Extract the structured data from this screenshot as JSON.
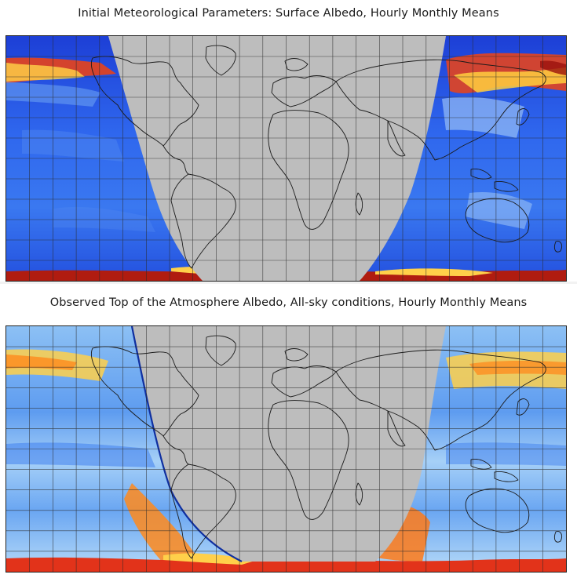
{
  "figure": {
    "panels": [
      {
        "id": "surface-albedo",
        "title": "Initial Meteorological Parameters: Surface Albedo, Hourly Monthly Means",
        "field": "surface-albedo",
        "projection": "equirectangular-global",
        "grid": true,
        "night_side_fill": "#bdbdbd",
        "colorscale": [
          "#1530c8",
          "#2b5cf0",
          "#5a93f2",
          "#9ec4f4",
          "#ffe04a",
          "#ff8a1c",
          "#e82a14",
          "#7a0f0a"
        ]
      },
      {
        "id": "toa-albedo",
        "title": "Observed Top of the Atmosphere Albedo, All-sky conditions, Hourly Monthly Means",
        "field": "toa-albedo-all-sky",
        "projection": "equirectangular-global",
        "grid": true,
        "night_side_fill": "#bdbdbd",
        "colorscale": [
          "#2d6ee6",
          "#6aa6f2",
          "#a8d2f7",
          "#d8ecfa",
          "#ffe04a",
          "#ff8a1c",
          "#e82a14",
          "#9a120c"
        ]
      }
    ]
  }
}
